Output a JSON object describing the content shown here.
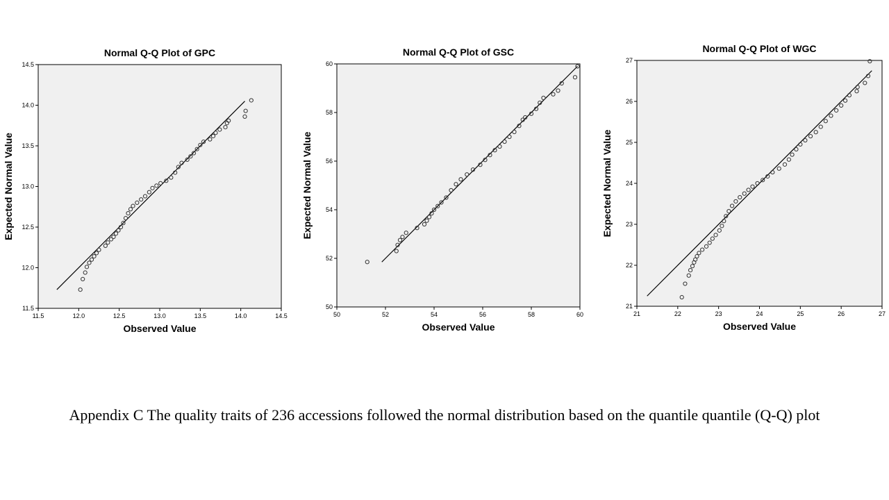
{
  "caption": "Appendix C The quality traits of 236 accessions followed the normal distribution based on the quantile quantile (Q-Q) plot",
  "style": {
    "plot_bg": "#f0f0f0",
    "marker_stroke": "#333333",
    "line_color": "#000000"
  },
  "chart_data": [
    {
      "type": "scatter",
      "title": "Normal Q-Q Plot of GPC",
      "xlabel": "Observed Value",
      "ylabel": "Expected Normal Value",
      "xlim": [
        11.5,
        14.5
      ],
      "ylim": [
        11.5,
        14.5
      ],
      "xticks": [
        "11.5",
        "12.0",
        "12.5",
        "13.0",
        "13.5",
        "14.0",
        "14.5"
      ],
      "yticks": [
        "11.5",
        "12.0",
        "12.5",
        "13.0",
        "13.5",
        "14.0",
        "14.5"
      ],
      "reference_line": [
        [
          11.73,
          11.73
        ],
        [
          14.05,
          14.05
        ]
      ],
      "points": [
        [
          12.02,
          11.73
        ],
        [
          12.05,
          11.86
        ],
        [
          12.08,
          11.94
        ],
        [
          12.1,
          12.01
        ],
        [
          12.13,
          12.06
        ],
        [
          12.16,
          12.1
        ],
        [
          12.19,
          12.14
        ],
        [
          12.22,
          12.18
        ],
        [
          12.25,
          12.22
        ],
        [
          12.33,
          12.27
        ],
        [
          12.36,
          12.31
        ],
        [
          12.4,
          12.35
        ],
        [
          12.43,
          12.38
        ],
        [
          12.46,
          12.42
        ],
        [
          12.49,
          12.46
        ],
        [
          12.52,
          12.5
        ],
        [
          12.55,
          12.55
        ],
        [
          12.58,
          12.61
        ],
        [
          12.61,
          12.67
        ],
        [
          12.64,
          12.72
        ],
        [
          12.67,
          12.76
        ],
        [
          12.72,
          12.8
        ],
        [
          12.77,
          12.84
        ],
        [
          12.82,
          12.88
        ],
        [
          12.87,
          12.93
        ],
        [
          12.91,
          12.98
        ],
        [
          12.96,
          13.01
        ],
        [
          13.01,
          13.04
        ],
        [
          13.08,
          13.07
        ],
        [
          13.14,
          13.11
        ],
        [
          13.19,
          13.17
        ],
        [
          13.23,
          13.24
        ],
        [
          13.27,
          13.29
        ],
        [
          13.34,
          13.33
        ],
        [
          13.38,
          13.37
        ],
        [
          13.42,
          13.41
        ],
        [
          13.46,
          13.46
        ],
        [
          13.5,
          13.51
        ],
        [
          13.54,
          13.55
        ],
        [
          13.62,
          13.58
        ],
        [
          13.66,
          13.62
        ],
        [
          13.69,
          13.66
        ],
        [
          13.74,
          13.7
        ],
        [
          13.81,
          13.73
        ],
        [
          13.83,
          13.78
        ],
        [
          13.85,
          13.81
        ],
        [
          14.05,
          13.86
        ],
        [
          14.06,
          13.93
        ],
        [
          14.13,
          14.06
        ]
      ]
    },
    {
      "type": "scatter",
      "title": "Normal Q-Q Plot of GSC",
      "xlabel": "Observed Value",
      "ylabel": "Expected Normal Value",
      "xlim": [
        50,
        60
      ],
      "ylim": [
        50,
        60
      ],
      "xticks": [
        "50",
        "52",
        "54",
        "56",
        "58",
        "60"
      ],
      "yticks": [
        "50",
        "52",
        "54",
        "56",
        "58",
        "60"
      ],
      "reference_line": [
        [
          51.85,
          51.85
        ],
        [
          59.9,
          59.9
        ]
      ],
      "points": [
        [
          51.25,
          51.85
        ],
        [
          52.45,
          52.3
        ],
        [
          52.5,
          52.55
        ],
        [
          52.6,
          52.75
        ],
        [
          52.7,
          52.88
        ],
        [
          52.85,
          53.05
        ],
        [
          53.3,
          53.25
        ],
        [
          53.6,
          53.4
        ],
        [
          53.7,
          53.55
        ],
        [
          53.8,
          53.7
        ],
        [
          53.9,
          53.85
        ],
        [
          54.0,
          54.0
        ],
        [
          54.15,
          54.15
        ],
        [
          54.3,
          54.3
        ],
        [
          54.5,
          54.5
        ],
        [
          54.7,
          54.8
        ],
        [
          54.9,
          55.05
        ],
        [
          55.1,
          55.25
        ],
        [
          55.35,
          55.45
        ],
        [
          55.6,
          55.65
        ],
        [
          55.9,
          55.85
        ],
        [
          56.1,
          56.05
        ],
        [
          56.3,
          56.25
        ],
        [
          56.5,
          56.45
        ],
        [
          56.7,
          56.6
        ],
        [
          56.9,
          56.8
        ],
        [
          57.1,
          57.0
        ],
        [
          57.3,
          57.2
        ],
        [
          57.5,
          57.45
        ],
        [
          57.65,
          57.7
        ],
        [
          57.75,
          57.8
        ],
        [
          58.0,
          57.95
        ],
        [
          58.2,
          58.15
        ],
        [
          58.35,
          58.4
        ],
        [
          58.5,
          58.6
        ],
        [
          58.9,
          58.75
        ],
        [
          59.1,
          58.9
        ],
        [
          59.25,
          59.2
        ],
        [
          59.8,
          59.45
        ],
        [
          59.9,
          59.9
        ]
      ]
    },
    {
      "type": "scatter",
      "title": "Normal Q-Q Plot of WGC",
      "xlabel": "Observed Value",
      "ylabel": "Expected Normal Value",
      "xlim": [
        21,
        27
      ],
      "ylim": [
        21,
        27
      ],
      "xticks": [
        "21",
        "22",
        "23",
        "24",
        "25",
        "26",
        "27"
      ],
      "yticks": [
        "21",
        "22",
        "23",
        "24",
        "25",
        "26",
        "27"
      ],
      "reference_line": [
        [
          21.25,
          21.25
        ],
        [
          26.75,
          26.75
        ]
      ],
      "points": [
        [
          22.1,
          21.22
        ],
        [
          22.18,
          21.55
        ],
        [
          22.27,
          21.75
        ],
        [
          22.31,
          21.88
        ],
        [
          22.36,
          21.98
        ],
        [
          22.4,
          22.07
        ],
        [
          22.43,
          22.14
        ],
        [
          22.47,
          22.22
        ],
        [
          22.52,
          22.3
        ],
        [
          22.6,
          22.38
        ],
        [
          22.7,
          22.46
        ],
        [
          22.78,
          22.55
        ],
        [
          22.85,
          22.65
        ],
        [
          22.93,
          22.74
        ],
        [
          23.02,
          22.85
        ],
        [
          23.08,
          22.96
        ],
        [
          23.13,
          23.08
        ],
        [
          23.18,
          23.2
        ],
        [
          23.25,
          23.32
        ],
        [
          23.33,
          23.45
        ],
        [
          23.42,
          23.56
        ],
        [
          23.52,
          23.66
        ],
        [
          23.63,
          23.75
        ],
        [
          23.73,
          23.84
        ],
        [
          23.83,
          23.92
        ],
        [
          23.95,
          24.0
        ],
        [
          24.08,
          24.08
        ],
        [
          24.2,
          24.17
        ],
        [
          24.32,
          24.27
        ],
        [
          24.48,
          24.36
        ],
        [
          24.62,
          24.46
        ],
        [
          24.72,
          24.58
        ],
        [
          24.8,
          24.7
        ],
        [
          24.9,
          24.83
        ],
        [
          25.0,
          24.95
        ],
        [
          25.12,
          25.05
        ],
        [
          25.25,
          25.15
        ],
        [
          25.38,
          25.25
        ],
        [
          25.5,
          25.38
        ],
        [
          25.62,
          25.52
        ],
        [
          25.75,
          25.65
        ],
        [
          25.88,
          25.78
        ],
        [
          26.0,
          25.9
        ],
        [
          26.1,
          26.02
        ],
        [
          26.2,
          26.15
        ],
        [
          26.38,
          26.25
        ],
        [
          26.4,
          26.35
        ],
        [
          26.58,
          26.45
        ],
        [
          26.66,
          26.62
        ],
        [
          26.7,
          26.98
        ]
      ]
    }
  ]
}
